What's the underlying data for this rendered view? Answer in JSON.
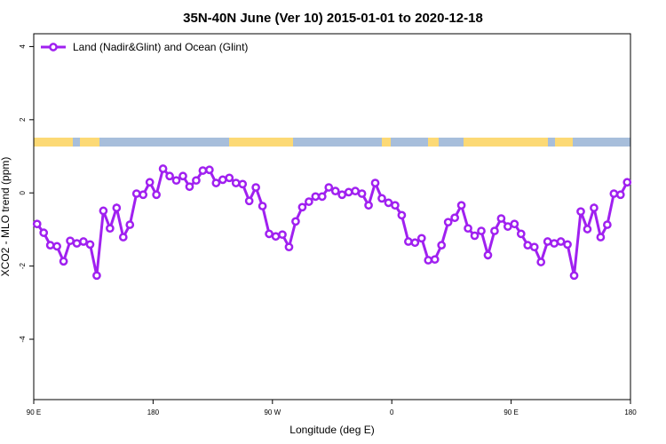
{
  "chart_data": {
    "type": "line",
    "title": "35N-40N June (Ver 10)   2015-01-01 to 2020-12-18",
    "x_label": "Longitude (deg E)",
    "y_label": "XCO2 - MLO trend (ppm)",
    "legend_position": "top-left",
    "x": [
      92.5,
      97.5,
      102.5,
      107.5,
      112.5,
      117.5,
      122.5,
      127.5,
      132.5,
      137.5,
      142.5,
      147.5,
      152.5,
      157.5,
      162.5,
      167.5,
      172.5,
      177.5,
      182.5,
      187.5,
      192.5,
      197.5,
      202.5,
      207.5,
      212.5,
      217.5,
      222.5,
      227.5,
      232.5,
      237.5,
      242.5,
      247.5,
      252.5,
      257.5,
      262.5,
      267.5,
      272.5,
      277.5,
      282.5,
      287.5,
      292.5,
      297.5,
      302.5,
      307.5,
      312.5,
      317.5,
      322.5,
      327.5,
      332.5,
      337.5,
      342.5,
      347.5,
      352.5,
      357.5,
      362.5,
      367.5,
      372.5,
      377.5,
      382.5,
      387.5,
      392.5,
      397.5,
      402.5,
      407.5,
      412.5,
      417.5,
      422.5,
      427.5,
      432.5,
      437.5,
      442.5,
      447.5,
      452.5,
      457.5,
      462.5,
      467.5,
      472.5,
      477.5,
      482.5,
      487.5,
      492.5,
      497.5,
      502.5,
      507.5,
      512.5,
      517.5,
      522.5,
      527.5,
      532.5,
      537.5
    ],
    "series": [
      {
        "name": "Land (Nadir&Glint) and Ocean (Glint)",
        "color": "#a020f0",
        "values": [
          -0.85,
          -1.09,
          -1.43,
          -1.46,
          -1.87,
          -1.31,
          -1.38,
          -1.33,
          -1.41,
          -2.26,
          -0.49,
          -0.97,
          -0.41,
          -1.21,
          -0.87,
          -0.02,
          -0.05,
          0.29,
          -0.05,
          0.66,
          0.46,
          0.34,
          0.46,
          0.17,
          0.34,
          0.61,
          0.63,
          0.27,
          0.36,
          0.41,
          0.27,
          0.24,
          -0.22,
          0.15,
          -0.36,
          -1.12,
          -1.19,
          -1.14,
          -1.48,
          -0.78,
          -0.39,
          -0.24,
          -0.1,
          -0.1,
          0.15,
          0.05,
          -0.05,
          0.02,
          0.05,
          -0.02,
          -0.34,
          0.27,
          -0.15,
          -0.27,
          -0.34,
          -0.61,
          -1.33,
          -1.36,
          -1.24,
          -1.84,
          -1.82,
          -1.43,
          -0.8,
          -0.68,
          -0.34,
          -0.97,
          -1.17,
          -1.04,
          -1.7,
          -1.04,
          -0.7,
          -0.92,
          -0.85,
          -1.12,
          -1.43,
          -1.48,
          -1.89,
          -1.33,
          -1.38,
          -1.33,
          -1.41,
          -2.26,
          -0.51,
          -0.99,
          -0.41,
          -1.21,
          -0.87,
          -0.02,
          -0.05,
          0.29
        ]
      }
    ],
    "xlim": [
      90,
      540
    ],
    "xticks": [
      {
        "value": 90,
        "label": "90 E"
      },
      {
        "value": 180,
        "label": "180"
      },
      {
        "value": 270,
        "label": "90 W"
      },
      {
        "value": 360,
        "label": "0"
      },
      {
        "value": 450,
        "label": "90 E"
      },
      {
        "value": 540,
        "label": "180"
      }
    ],
    "ylim": [
      -5.65,
      4.35
    ],
    "yticks": [
      4,
      2,
      0,
      -2,
      -4
    ]
  }
}
